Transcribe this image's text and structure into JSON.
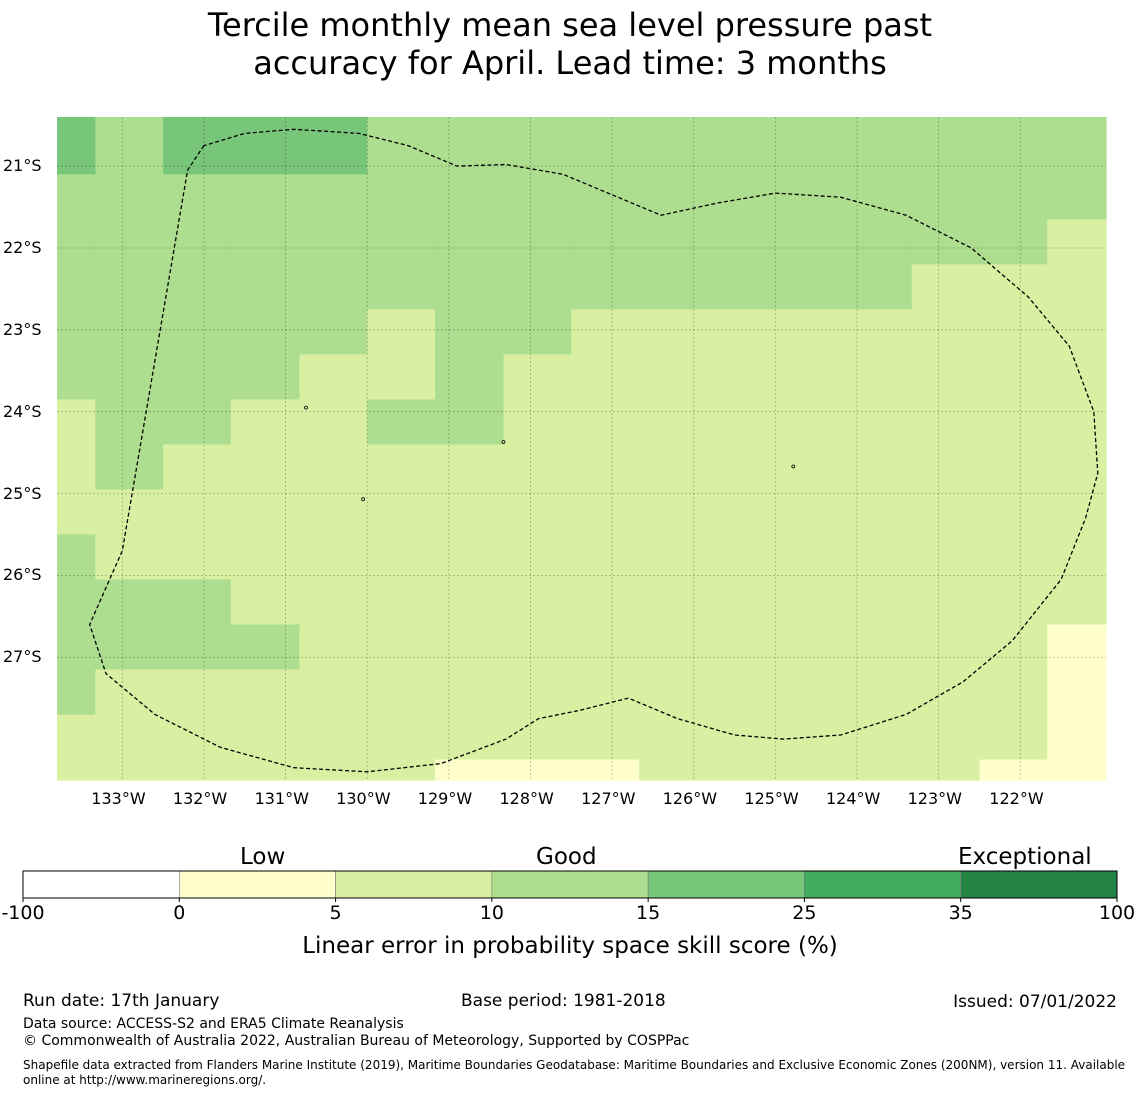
{
  "title_line1": "Tercile monthly mean sea level pressure past",
  "title_line2": "accuracy for April. Lead time: 3 months",
  "map": {
    "lon_labels": [
      "133°W",
      "132°W",
      "131°W",
      "130°W",
      "129°W",
      "128°W",
      "127°W",
      "126°W",
      "125°W",
      "124°W",
      "123°W",
      "122°W"
    ],
    "lat_labels": [
      "21°S",
      "22°S",
      "23°S",
      "24°S",
      "25°S",
      "26°S",
      "27°S"
    ],
    "lon_values": [
      -133,
      -132,
      -131,
      -130,
      -129,
      -128,
      -127,
      -126,
      -125,
      -124,
      -123,
      -122
    ],
    "lat_values": [
      -21,
      -22,
      -23,
      -24,
      -25,
      -26,
      -27
    ],
    "extent": {
      "lon_min": -133.8,
      "lon_max": -120.95,
      "lat_min": -28.5,
      "lat_max": -20.4
    },
    "cell_lon_edges": [
      -133.8,
      -133.33,
      -132.5,
      -131.67,
      -130.83,
      -130.0,
      -129.17,
      -128.33,
      -127.5,
      -126.67,
      -125.83,
      -125.0,
      -124.17,
      -123.33,
      -122.5,
      -121.67,
      -120.95
    ],
    "cell_lat_edges": [
      -20.4,
      -21.1,
      -21.65,
      -22.2,
      -22.75,
      -23.3,
      -23.85,
      -24.4,
      -24.95,
      -25.5,
      -26.05,
      -26.6,
      -27.15,
      -27.7,
      -28.25,
      -28.5
    ],
    "skill_categories": [
      [
        3,
        2,
        3,
        3,
        3,
        2,
        2,
        2,
        2,
        2,
        2,
        2,
        2,
        2,
        2,
        2
      ],
      [
        2,
        2,
        2,
        2,
        2,
        2,
        2,
        2,
        2,
        2,
        2,
        2,
        2,
        2,
        2,
        2
      ],
      [
        2,
        2,
        2,
        2,
        2,
        2,
        2,
        2,
        2,
        2,
        2,
        2,
        2,
        2,
        2,
        1
      ],
      [
        2,
        2,
        2,
        2,
        2,
        2,
        2,
        2,
        2,
        2,
        2,
        2,
        2,
        1,
        1,
        1
      ],
      [
        2,
        2,
        2,
        2,
        2,
        1,
        2,
        2,
        1,
        1,
        1,
        1,
        1,
        1,
        1,
        1
      ],
      [
        2,
        2,
        2,
        2,
        1,
        1,
        2,
        1,
        1,
        1,
        1,
        1,
        1,
        1,
        1,
        1
      ],
      [
        1,
        2,
        2,
        1,
        1,
        2,
        2,
        1,
        1,
        1,
        1,
        1,
        1,
        1,
        1,
        1
      ],
      [
        1,
        2,
        1,
        1,
        1,
        1,
        1,
        1,
        1,
        1,
        1,
        1,
        1,
        1,
        1,
        1
      ],
      [
        1,
        1,
        1,
        1,
        1,
        1,
        1,
        1,
        1,
        1,
        1,
        1,
        1,
        1,
        1,
        1
      ],
      [
        2,
        1,
        1,
        1,
        1,
        1,
        1,
        1,
        1,
        1,
        1,
        1,
        1,
        1,
        1,
        1
      ],
      [
        2,
        2,
        2,
        1,
        1,
        1,
        1,
        1,
        1,
        1,
        1,
        1,
        1,
        1,
        1,
        1
      ],
      [
        2,
        2,
        2,
        2,
        1,
        1,
        1,
        1,
        1,
        1,
        1,
        1,
        1,
        1,
        1,
        0
      ],
      [
        2,
        1,
        1,
        1,
        1,
        1,
        1,
        1,
        1,
        1,
        1,
        1,
        1,
        1,
        1,
        0
      ],
      [
        1,
        1,
        1,
        1,
        1,
        1,
        1,
        1,
        1,
        1,
        1,
        1,
        1,
        1,
        1,
        0
      ],
      [
        1,
        1,
        1,
        1,
        1,
        1,
        0,
        0,
        0,
        1,
        1,
        1,
        1,
        1,
        0,
        0
      ]
    ],
    "eez_boundary": [
      [
        -132.0,
        -20.75
      ],
      [
        -132.2,
        -21.05
      ],
      [
        -133.0,
        -25.7
      ],
      [
        -133.4,
        -26.6
      ],
      [
        -133.2,
        -27.2
      ],
      [
        -132.6,
        -27.7
      ],
      [
        -131.8,
        -28.1
      ],
      [
        -130.9,
        -28.35
      ],
      [
        -130.0,
        -28.4
      ],
      [
        -129.1,
        -28.3
      ],
      [
        -128.3,
        -28.0
      ],
      [
        -127.9,
        -27.75
      ],
      [
        -127.4,
        -27.65
      ],
      [
        -126.8,
        -27.5
      ],
      [
        -126.2,
        -27.75
      ],
      [
        -125.5,
        -27.95
      ],
      [
        -124.9,
        -28.0
      ],
      [
        -124.2,
        -27.95
      ],
      [
        -123.4,
        -27.7
      ],
      [
        -122.7,
        -27.3
      ],
      [
        -122.1,
        -26.8
      ],
      [
        -121.5,
        -26.05
      ],
      [
        -121.2,
        -25.3
      ],
      [
        -121.05,
        -24.75
      ],
      [
        -121.1,
        -24.0
      ],
      [
        -121.4,
        -23.2
      ],
      [
        -121.9,
        -22.6
      ],
      [
        -122.6,
        -22.0
      ],
      [
        -123.4,
        -21.6
      ],
      [
        -124.2,
        -21.38
      ],
      [
        -125.0,
        -21.33
      ],
      [
        -125.7,
        -21.45
      ],
      [
        -126.4,
        -21.6
      ],
      [
        -127.0,
        -21.35
      ],
      [
        -127.6,
        -21.1
      ],
      [
        -128.3,
        -20.98
      ],
      [
        -128.9,
        -21.0
      ],
      [
        -129.5,
        -20.75
      ],
      [
        -130.1,
        -20.6
      ],
      [
        -130.9,
        -20.55
      ],
      [
        -131.5,
        -20.6
      ],
      [
        -132.0,
        -20.75
      ]
    ],
    "islands": [
      [
        -130.75,
        -23.95
      ],
      [
        -128.33,
        -24.37
      ],
      [
        -130.05,
        -25.07
      ],
      [
        -124.78,
        -24.67
      ]
    ]
  },
  "colorbar": {
    "colors": [
      "#ffffff",
      "#ffffcc",
      "#d9f0a3",
      "#addd8e",
      "#78c679",
      "#41ab5d",
      "#238443"
    ],
    "tick_labels": [
      "-100",
      "0",
      "5",
      "10",
      "15",
      "25",
      "35",
      "100"
    ],
    "category_low": "Low",
    "category_good": "Good",
    "category_exceptional": "Exceptional",
    "label": "Linear error in probability space skill score (%)"
  },
  "footer": {
    "run_date": "Run date: 17th January",
    "base_period": "Base period: 1981-2018",
    "issued": "Issued: 07/01/2022",
    "data_source": "Data source: ACCESS-S2 and ERA5 Climate Reanalysis",
    "copyright": "© Commonwealth of Australia 2022, Australian Bureau of Meteorology, Supported by COSPPac",
    "shapefile": "Shapefile data extracted from Flanders Marine Institute (2019), Maritime Boundaries Geodatabase: Maritime Boundaries and Exclusive Economic Zones (200NM), version 11. Available online at http://www.marineregions.org/."
  }
}
